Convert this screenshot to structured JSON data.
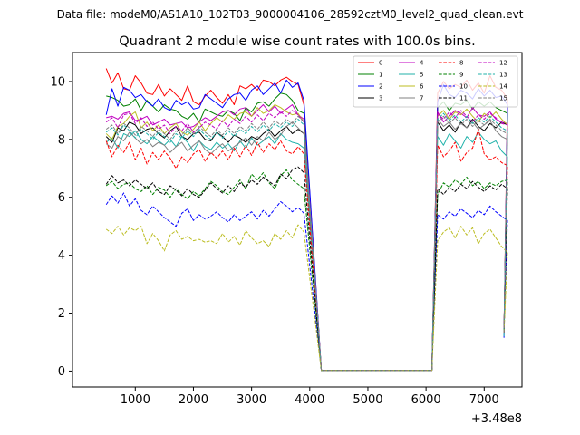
{
  "figure": {
    "suptitle": "Data file: modeM0/AS1A10_102T03_9000004106_28592cztM0_level2_quad_clean.evt"
  },
  "chart_data": {
    "type": "line",
    "title": "Quadrant 2 module wise count rates with 100.0s bins.",
    "xlabel": "",
    "ylabel": "",
    "x_offset_label": "+3.48e8",
    "xlim": [
      -80,
      7650
    ],
    "ylim": [
      -0.55,
      11.0
    ],
    "xticks": [
      1000,
      2000,
      3000,
      4000,
      5000,
      6000,
      7000
    ],
    "yticks": [
      0,
      2,
      4,
      6,
      8,
      10
    ],
    "grid": false,
    "legend": {
      "placement": "upper right",
      "columns": 4
    },
    "x_start": 500,
    "x_step": 100,
    "gap_x": [
      4200,
      4300,
      4400,
      4500,
      4600,
      4700,
      4800,
      4900,
      5000,
      5100,
      5200,
      5300,
      5400,
      5500,
      5600,
      5700,
      5800,
      5900,
      6000,
      6100
    ],
    "x_end": 7340,
    "series": [
      {
        "name": "0",
        "color": "#ff0000",
        "dash": "solid",
        "pre": [
          10.45,
          9.95,
          10.3,
          9.75,
          9.7,
          10.2,
          9.95,
          9.6,
          9.55,
          9.9,
          9.5,
          9.75,
          9.55,
          9.35,
          9.85,
          9.3,
          9.2,
          9.5,
          9.7,
          9.45,
          9.25,
          9.55,
          9.2,
          9.85,
          9.75,
          9.9,
          9.7,
          10.05,
          10.0,
          9.85,
          10.05,
          10.15,
          10.0,
          9.9,
          9.2
        ],
        "post": [
          9.6,
          10.0,
          9.75,
          9.9,
          9.8,
          10.05,
          9.7,
          9.95,
          9.6,
          10.2,
          9.8,
          9.7,
          9.4
        ],
        "end": 1.3
      },
      {
        "name": "1",
        "color": "#008000",
        "dash": "solid",
        "pre": [
          9.5,
          9.45,
          9.35,
          9.15,
          9.2,
          9.4,
          9.0,
          9.35,
          9.15,
          8.95,
          9.2,
          9.05,
          9.0,
          8.8,
          8.7,
          8.9,
          8.6,
          9.05,
          8.95,
          8.85,
          8.8,
          9.0,
          8.9,
          8.65,
          9.1,
          8.95,
          9.25,
          9.3,
          9.15,
          9.4,
          9.6,
          9.55,
          9.35,
          9.0,
          8.9
        ],
        "post": [
          9.1,
          9.3,
          9.0,
          9.25,
          9.2,
          9.35,
          9.05,
          9.3,
          9.15,
          9.3,
          9.1,
          9.0,
          8.9
        ],
        "end": 1.3
      },
      {
        "name": "2",
        "color": "#0000ff",
        "dash": "solid",
        "pre": [
          8.85,
          9.75,
          9.15,
          9.8,
          9.7,
          9.45,
          9.55,
          9.3,
          9.15,
          9.4,
          9.1,
          9.0,
          9.35,
          9.2,
          9.3,
          9.05,
          9.1,
          9.55,
          9.4,
          9.25,
          9.1,
          9.4,
          9.55,
          9.6,
          9.35,
          9.7,
          9.85,
          9.55,
          9.75,
          9.95,
          9.6,
          10.05,
          9.8,
          9.95,
          9.35
        ],
        "post": [
          9.3,
          9.9,
          9.55,
          9.45,
          9.7,
          9.6,
          9.4,
          9.75,
          9.5,
          9.7,
          9.45,
          9.5,
          9.2
        ],
        "end": 1.15
      },
      {
        "name": "3",
        "color": "#000000",
        "dash": "solid",
        "pre": [
          8.1,
          7.9,
          8.4,
          8.3,
          8.6,
          8.5,
          8.2,
          8.35,
          8.4,
          8.2,
          8.05,
          8.3,
          8.45,
          8.1,
          8.0,
          8.2,
          8.25,
          8.0,
          7.95,
          8.25,
          8.1,
          7.9,
          8.15,
          8.05,
          7.9,
          8.1,
          8.0,
          8.2,
          8.35,
          8.1,
          8.3,
          8.45,
          8.2,
          8.35,
          8.2
        ],
        "post": [
          8.6,
          8.3,
          8.5,
          8.25,
          8.6,
          8.4,
          8.7,
          8.45,
          8.3,
          8.55,
          8.4,
          8.6,
          8.5
        ],
        "end": 1.3
      },
      {
        "name": "4",
        "color": "#c000c0",
        "dash": "solid",
        "pre": [
          8.75,
          8.8,
          8.7,
          8.9,
          8.95,
          8.65,
          8.7,
          8.8,
          8.5,
          8.6,
          8.7,
          8.5,
          8.55,
          8.6,
          8.4,
          8.45,
          8.6,
          8.75,
          8.65,
          8.8,
          8.95,
          9.0,
          8.85,
          9.05,
          9.1,
          8.8,
          9.0,
          9.2,
          8.95,
          9.15,
          8.9,
          9.05,
          9.2,
          8.85,
          8.7
        ],
        "post": [
          8.95,
          8.6,
          8.8,
          9.0,
          8.9,
          8.75,
          9.1,
          8.85,
          8.8,
          8.95,
          8.7,
          8.6,
          8.55
        ],
        "end": 1.3
      },
      {
        "name": "5",
        "color": "#20b2aa",
        "dash": "solid",
        "pre": [
          7.9,
          8.05,
          7.7,
          8.2,
          8.1,
          8.3,
          8.0,
          7.85,
          8.1,
          7.95,
          7.8,
          8.0,
          7.75,
          8.1,
          7.9,
          7.6,
          7.95,
          7.75,
          7.65,
          7.9,
          7.7,
          7.85,
          7.6,
          7.95,
          7.7,
          8.05,
          7.8,
          7.95,
          8.1,
          7.85,
          8.2,
          8.0,
          7.9,
          7.85,
          7.7
        ],
        "post": [
          8.1,
          7.8,
          8.2,
          7.95,
          7.7,
          8.1,
          7.9,
          8.25,
          8.0,
          7.85,
          7.95,
          7.6,
          7.4
        ],
        "end": 1.2
      },
      {
        "name": "6",
        "color": "#bcbd22",
        "dash": "solid",
        "pre": [
          8.2,
          8.0,
          8.45,
          8.55,
          8.8,
          8.95,
          8.4,
          8.6,
          8.3,
          8.5,
          8.2,
          8.4,
          8.55,
          8.25,
          8.15,
          8.35,
          8.6,
          8.3,
          8.55,
          8.75,
          8.6,
          8.85,
          8.7,
          8.9,
          8.95,
          8.8,
          9.1,
          8.9,
          9.0,
          9.2,
          9.1,
          8.95,
          8.85,
          8.9,
          8.6
        ],
        "post": [
          8.8,
          9.0,
          8.7,
          8.95,
          8.85,
          9.05,
          8.8,
          8.6,
          8.9,
          8.75,
          8.95,
          8.7,
          8.5
        ],
        "end": 1.3
      },
      {
        "name": "7",
        "color": "#808080",
        "dash": "solid",
        "pre": [
          7.85,
          7.7,
          8.1,
          7.95,
          8.25,
          8.05,
          7.85,
          8.0,
          7.75,
          7.9,
          7.8,
          7.55,
          7.75,
          7.9,
          7.6,
          7.8,
          7.95,
          7.65,
          7.5,
          7.7,
          7.85,
          7.6,
          7.75,
          7.9,
          8.05,
          7.8,
          8.1,
          7.95,
          8.25,
          8.0,
          8.15,
          8.45,
          8.6,
          8.4,
          8.2
        ],
        "post": [
          8.7,
          8.45,
          8.6,
          8.35,
          8.55,
          8.4,
          8.6,
          8.35,
          8.5,
          8.65,
          8.3,
          8.1,
          8.0
        ],
        "end": 1.3
      },
      {
        "name": "8",
        "color": "#ff0000",
        "dash": "dashed",
        "pre": [
          7.95,
          7.4,
          7.8,
          7.55,
          7.9,
          7.3,
          7.7,
          7.15,
          7.55,
          7.3,
          7.6,
          7.35,
          7.0,
          7.4,
          7.2,
          7.5,
          7.65,
          7.25,
          7.55,
          7.35,
          7.6,
          7.3,
          7.7,
          7.4,
          7.8,
          7.45,
          7.9,
          7.55,
          7.85,
          7.65,
          7.95,
          7.6,
          7.5,
          7.75,
          7.5
        ],
        "post": [
          7.8,
          7.4,
          7.6,
          7.9,
          7.25,
          7.55,
          7.7,
          8.35,
          7.5,
          7.3,
          7.4,
          7.2,
          7.1
        ],
        "end": 1.3
      },
      {
        "name": "9",
        "color": "#008000",
        "dash": "dashed",
        "pre": [
          6.4,
          6.55,
          6.3,
          6.45,
          6.5,
          6.3,
          6.2,
          6.4,
          6.1,
          6.35,
          6.25,
          6.0,
          6.3,
          6.1,
          5.95,
          6.2,
          6.05,
          6.3,
          6.55,
          6.4,
          6.2,
          6.1,
          6.35,
          6.6,
          6.3,
          6.8,
          6.6,
          6.85,
          6.5,
          6.3,
          6.75,
          6.95,
          6.6,
          6.45,
          6.3
        ],
        "post": [
          6.1,
          6.5,
          6.35,
          6.6,
          6.45,
          6.7,
          6.4,
          6.55,
          6.3,
          6.5,
          6.4,
          6.55,
          6.6
        ],
        "end": 1.3
      },
      {
        "name": "10",
        "color": "#0000ff",
        "dash": "dashed",
        "pre": [
          5.75,
          6.05,
          5.8,
          6.15,
          5.7,
          5.95,
          5.55,
          5.4,
          5.7,
          5.5,
          5.3,
          5.15,
          5.0,
          5.45,
          5.6,
          5.2,
          5.4,
          5.25,
          5.35,
          5.5,
          5.3,
          5.15,
          5.4,
          5.2,
          5.35,
          5.5,
          5.25,
          5.55,
          5.35,
          5.6,
          5.85,
          5.7,
          5.5,
          5.65,
          5.45
        ],
        "post": [
          5.4,
          5.25,
          5.5,
          5.35,
          5.6,
          5.45,
          5.3,
          5.55,
          5.4,
          5.7,
          5.5,
          5.35,
          5.2
        ],
        "end": 1.3
      },
      {
        "name": "11",
        "color": "#000000",
        "dash": "dashed",
        "pre": [
          6.45,
          6.75,
          6.5,
          6.6,
          6.4,
          6.6,
          6.45,
          6.3,
          6.5,
          6.2,
          6.1,
          6.4,
          6.25,
          6.05,
          6.3,
          6.1,
          6.0,
          6.25,
          6.5,
          6.3,
          6.15,
          6.4,
          6.2,
          6.5,
          6.35,
          6.6,
          6.45,
          6.7,
          6.55,
          6.4,
          6.8,
          6.65,
          6.95,
          7.05,
          6.85
        ],
        "post": [
          6.3,
          6.1,
          6.35,
          6.2,
          6.45,
          6.3,
          6.55,
          6.35,
          6.2,
          6.4,
          6.25,
          6.45,
          6.3
        ],
        "end": 1.3
      },
      {
        "name": "12",
        "color": "#c000c0",
        "dash": "dashed",
        "pre": [
          8.6,
          8.75,
          8.4,
          8.85,
          8.9,
          8.55,
          8.75,
          8.45,
          8.6,
          8.35,
          8.5,
          8.2,
          8.45,
          8.3,
          8.55,
          8.25,
          8.4,
          8.6,
          8.5,
          8.35,
          8.65,
          8.45,
          8.7,
          8.55,
          8.8,
          8.6,
          8.85,
          8.65,
          8.9,
          8.75,
          8.95,
          8.8,
          9.0,
          8.85,
          8.6
        ],
        "post": [
          8.9,
          8.7,
          8.95,
          8.75,
          9.0,
          8.8,
          8.6,
          8.85,
          8.7,
          8.9,
          8.75,
          8.55,
          8.5
        ],
        "end": 1.3
      },
      {
        "name": "13",
        "color": "#20b2aa",
        "dash": "dashed",
        "pre": [
          8.25,
          8.4,
          8.15,
          8.5,
          8.3,
          8.05,
          8.35,
          8.2,
          8.0,
          8.25,
          8.1,
          7.9,
          8.2,
          8.05,
          8.3,
          8.1,
          8.35,
          8.15,
          8.0,
          8.25,
          8.05,
          8.3,
          8.1,
          8.35,
          8.2,
          8.45,
          8.25,
          8.5,
          8.3,
          8.55,
          8.4,
          8.6,
          8.45,
          8.7,
          8.5
        ],
        "post": [
          8.7,
          8.9,
          8.65,
          8.85,
          8.6,
          8.8,
          8.55,
          8.75,
          8.6,
          8.8,
          8.6,
          8.4,
          8.3
        ],
        "end": 1.3
      },
      {
        "name": "14",
        "color": "#bcbd22",
        "dash": "dashed",
        "pre": [
          4.9,
          4.75,
          5.0,
          4.7,
          4.95,
          4.85,
          5.0,
          4.4,
          4.75,
          4.5,
          4.15,
          4.7,
          4.85,
          4.55,
          4.65,
          4.5,
          4.55,
          4.45,
          4.5,
          4.4,
          4.75,
          4.45,
          4.65,
          4.35,
          4.85,
          4.6,
          4.4,
          4.5,
          4.3,
          4.75,
          4.55,
          4.85,
          4.6,
          5.05,
          4.8
        ],
        "post": [
          4.5,
          4.8,
          4.95,
          4.6,
          5.0,
          4.7,
          4.95,
          4.4,
          4.75,
          4.9,
          4.6,
          4.3,
          4.1
        ],
        "end": 1.3
      },
      {
        "name": "15",
        "color": "#808080",
        "dash": "dashed",
        "pre": [
          8.35,
          8.5,
          8.2,
          8.55,
          8.4,
          8.15,
          8.45,
          8.3,
          8.1,
          8.35,
          8.2,
          8.0,
          8.3,
          8.15,
          8.4,
          8.2,
          8.45,
          8.25,
          8.1,
          8.35,
          8.15,
          8.4,
          8.2,
          8.45,
          8.3,
          8.55,
          8.35,
          8.6,
          8.4,
          8.65,
          8.5,
          8.7,
          8.55,
          8.8,
          8.6
        ],
        "post": [
          8.6,
          8.8,
          8.55,
          8.75,
          8.5,
          8.7,
          8.45,
          8.65,
          8.5,
          8.7,
          8.5,
          8.3,
          8.2
        ],
        "end": 1.3
      }
    ]
  }
}
